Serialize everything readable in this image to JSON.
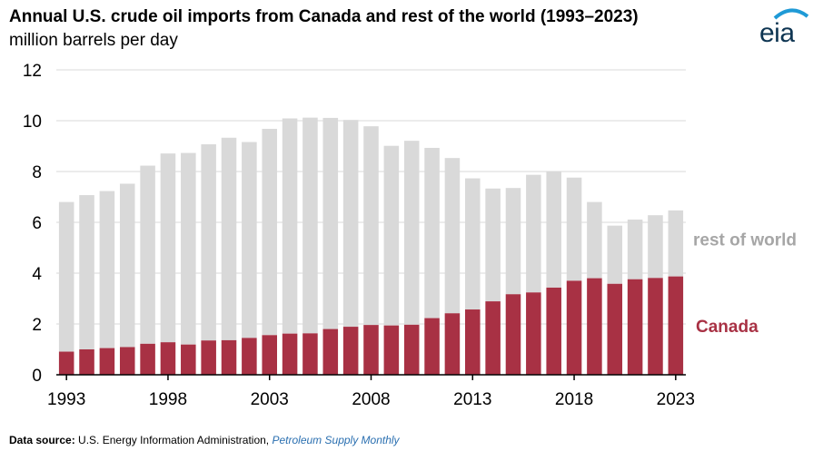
{
  "header": {
    "title": "Annual U.S. crude oil imports from Canada and rest of the world (1993–2023)",
    "subtitle": "million barrels per day"
  },
  "logo": {
    "text": "eia",
    "icon": "eia-logo-arc"
  },
  "footer": {
    "label": "Data source:",
    "text": "U.S. Energy Information Administration,",
    "publication": "Petroleum Supply Monthly"
  },
  "colors": {
    "canada": "#a83144",
    "rest_of_world": "#d9d9d9",
    "rest_label": "#a6a6a6",
    "axis": "#000000",
    "grid": "#d9d9d9"
  },
  "chart_data": {
    "type": "bar",
    "stacked": true,
    "categories": [
      1993,
      1994,
      1995,
      1996,
      1997,
      1998,
      1999,
      2000,
      2001,
      2002,
      2003,
      2004,
      2005,
      2006,
      2007,
      2008,
      2009,
      2010,
      2011,
      2012,
      2013,
      2014,
      2015,
      2016,
      2017,
      2018,
      2019,
      2020,
      2021,
      2022,
      2023
    ],
    "x_tick_labels": [
      "1993",
      "1998",
      "2003",
      "2008",
      "2013",
      "2018",
      "2023"
    ],
    "y_tick_labels": [
      "0",
      "2",
      "4",
      "6",
      "8",
      "10",
      "12"
    ],
    "ylim": [
      0,
      12
    ],
    "grid": true,
    "series": [
      {
        "name": "Canada",
        "values": [
          0.91,
          1.0,
          1.05,
          1.09,
          1.22,
          1.28,
          1.19,
          1.35,
          1.36,
          1.45,
          1.56,
          1.62,
          1.63,
          1.8,
          1.89,
          1.96,
          1.94,
          1.97,
          2.23,
          2.42,
          2.57,
          2.89,
          3.17,
          3.24,
          3.43,
          3.7,
          3.8,
          3.58,
          3.76,
          3.81,
          3.87
        ]
      },
      {
        "name": "rest of world",
        "values": [
          5.89,
          6.07,
          6.18,
          6.43,
          7.01,
          7.43,
          7.54,
          7.72,
          7.97,
          7.71,
          8.12,
          8.47,
          8.49,
          8.31,
          8.14,
          7.82,
          7.07,
          7.24,
          6.7,
          6.11,
          5.16,
          4.44,
          4.18,
          4.63,
          4.57,
          4.06,
          3.0,
          2.29,
          2.35,
          2.47,
          2.6
        ]
      }
    ],
    "legend_placement": "inline-right"
  }
}
